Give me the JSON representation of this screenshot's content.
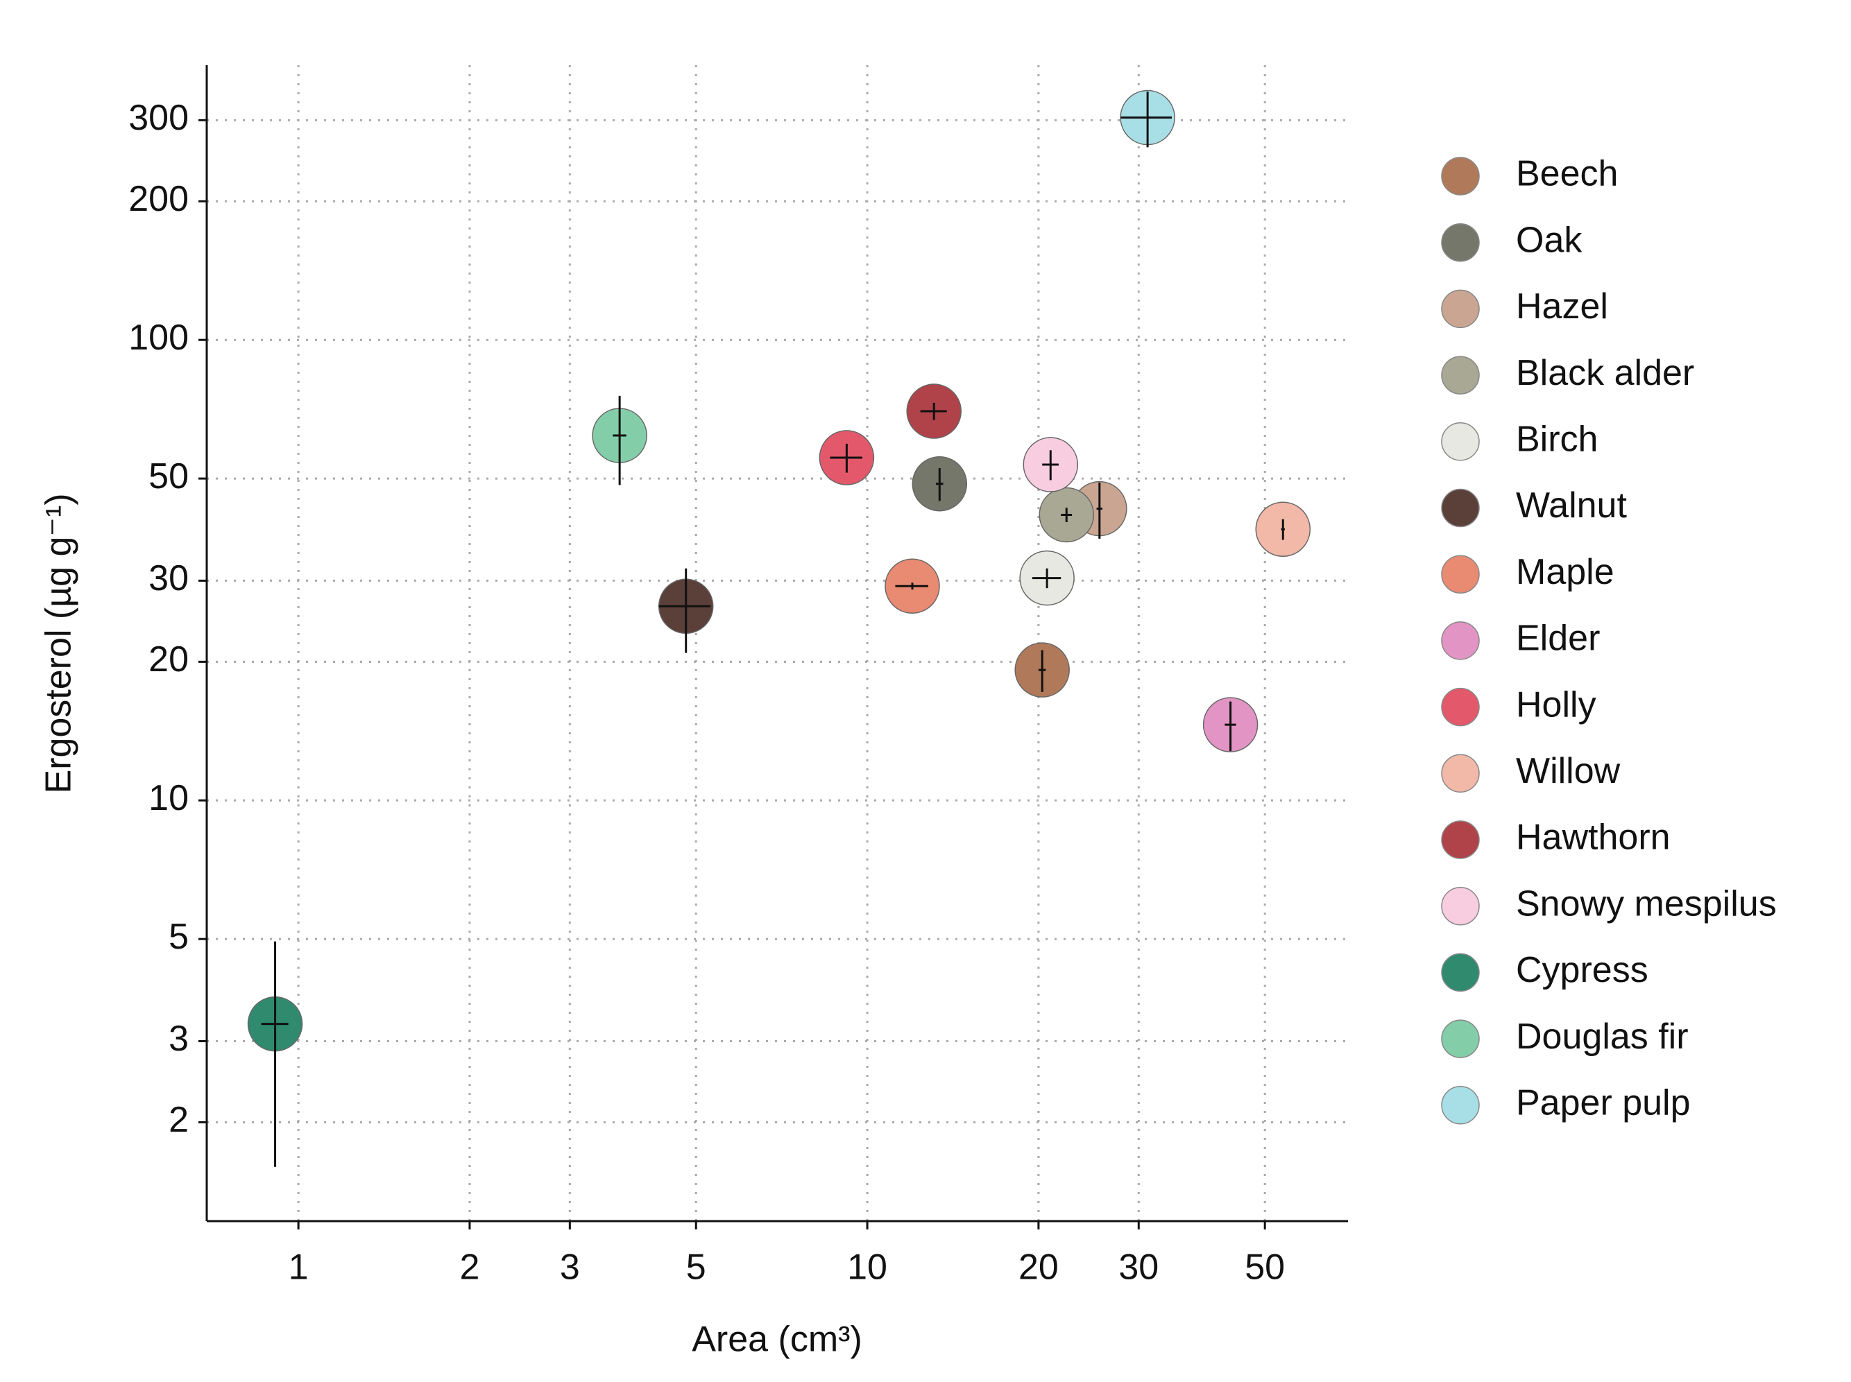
{
  "chart_data": {
    "type": "scatter",
    "x_label": "Area (cm³)",
    "y_label": "Ergosterol (µg g⁻¹)",
    "xscale": "log",
    "yscale": "log",
    "grid": true,
    "legend": "right",
    "xlim": [
      0.69,
      70
    ],
    "ylim": [
      1.22,
      395
    ],
    "xticks": [
      1,
      2,
      3,
      5,
      10,
      20,
      30,
      50
    ],
    "yticks": [
      2,
      3,
      5,
      10,
      20,
      30,
      50,
      100,
      200,
      300
    ],
    "series": [
      {
        "name": "Beech",
        "color": "#b07a5a",
        "x": [
          20.3
        ],
        "values": [
          19.2
        ],
        "x_error": [
          0.3
        ],
        "y_error": [
          2
        ]
      },
      {
        "name": "Oak",
        "color": "#75776a",
        "x": [
          13.4
        ],
        "values": [
          48.7
        ],
        "x_error": [
          0.2
        ],
        "y_error": [
          4
        ]
      },
      {
        "name": "Hazel",
        "color": "#c9a592",
        "x": [
          25.6
        ],
        "values": [
          43
        ],
        "x_error": [
          0.3
        ],
        "y_error": [
          6
        ]
      },
      {
        "name": "Black alder",
        "color": "#a8a894",
        "x": [
          22.4
        ],
        "values": [
          41.7
        ],
        "x_error": [
          0.5
        ],
        "y_error": [
          1.5
        ]
      },
      {
        "name": "Birch",
        "color": "#e8e8e2",
        "x": [
          20.7
        ],
        "values": [
          30.4
        ],
        "x_error": [
          1.2
        ],
        "y_error": [
          1.5
        ]
      },
      {
        "name": "Walnut",
        "color": "#5a4039",
        "x": [
          4.8
        ],
        "values": [
          26.4
        ],
        "x_error": [
          0.5
        ],
        "y_error": [
          5.5
        ]
      },
      {
        "name": "Maple",
        "color": "#e98a72",
        "x": [
          12.0
        ],
        "values": [
          29.2
        ],
        "x_error": [
          0.8
        ],
        "y_error": [
          0.5
        ]
      },
      {
        "name": "Elder",
        "color": "#e295c4",
        "x": [
          43.5
        ],
        "values": [
          14.6
        ],
        "x_error": [
          1
        ],
        "y_error": [
          1.8
        ]
      },
      {
        "name": "Holly",
        "color": "#e3596b",
        "x": [
          9.2
        ],
        "values": [
          55.5
        ],
        "x_error": [
          0.6
        ],
        "y_error": [
          4
        ]
      },
      {
        "name": "Willow",
        "color": "#f2b8a8",
        "x": [
          53.8
        ],
        "values": [
          38.8
        ],
        "x_error": [
          0.4
        ],
        "y_error": [
          2
        ]
      },
      {
        "name": "Hawthorn",
        "color": "#b04349",
        "x": [
          13.1
        ],
        "values": [
          70
        ],
        "x_error": [
          0.7
        ],
        "y_error": [
          3
        ]
      },
      {
        "name": "Snowy mespilus",
        "color": "#f8cde0",
        "x": [
          21.0
        ],
        "values": [
          53.6
        ],
        "x_error": [
          0.7
        ],
        "y_error": [
          4
        ]
      },
      {
        "name": "Cypress",
        "color": "#2f8a6e",
        "x": [
          0.91
        ],
        "values": [
          3.27
        ],
        "x_error": [
          0.05
        ],
        "y_error": [
          1.67
        ]
      },
      {
        "name": "Douglas fir",
        "color": "#84cda9",
        "x": [
          3.67
        ],
        "values": [
          62
        ],
        "x_error": [
          0.1
        ],
        "y_error": [
          13.6
        ]
      },
      {
        "name": "Paper pulp",
        "color": "#a8dfe6",
        "x": [
          31.1
        ],
        "values": [
          304
        ],
        "x_error": [
          3.2
        ],
        "y_error": [
          42
        ]
      }
    ]
  }
}
